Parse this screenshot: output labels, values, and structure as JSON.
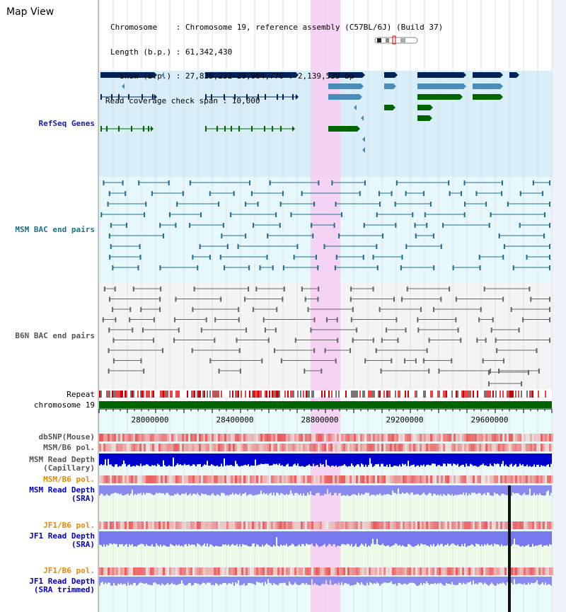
{
  "title": "Map View",
  "info": {
    "chromosome_line": "Chromosome    : Chromosome 19, reference assembly (C57BL/6J) (Build 37)",
    "length_line": "Length (b.p.) : 61,342,430",
    "show_line": "  Show (b.p.) : 27,825,232-29,964,770 : 2,139,539 bp",
    "coverage_line": "Read coverage check span : 10,000"
  },
  "tracks": {
    "refseq": "RefSeq Genes",
    "msm_bac": "MSM BAC end pairs",
    "b6n_bac": "B6N BAC end pairs",
    "repeat": "Repeat",
    "chromosome": "chromosome 19",
    "dbsnp": "dbSNP(Mouse)",
    "msm_b6_pol_1": "MSM/B6 pol.",
    "msm_read_depth_cap_1": "MSM Read Depth",
    "msm_read_depth_cap_2": "(Capillary)",
    "msm_b6_pol_2": "MSM/B6 pol.",
    "msm_read_depth_sra_1": "MSM Read Depth",
    "msm_read_depth_sra_2": "(SRA)",
    "jf1_b6_pol_1": "JF1/B6 pol.",
    "jf1_read_depth_sra_1": "JF1 Read Depth",
    "jf1_read_depth_sra_2": "(SRA)",
    "jf1_b6_pol_2": "JF1/B6 pol.",
    "jf1_read_depth_trim_1": "JF1 Read Depth",
    "jf1_read_depth_trim_2": "(SRA trimmed)"
  },
  "axis_ticks": [
    "28000000",
    "28400000",
    "28800000",
    "29200000",
    "29600000"
  ],
  "colors": {
    "gene_dark": "#00245a",
    "gene_mid": "#4a8db8",
    "gene_green": "#006400",
    "msm_bac": "#1f6f8b",
    "b6n_bac": "#666666",
    "highlight": "#f7cdf2",
    "track_blue": "#0000cc",
    "track_orange": "#e08a00",
    "track_teal": "#2a6f97"
  }
}
